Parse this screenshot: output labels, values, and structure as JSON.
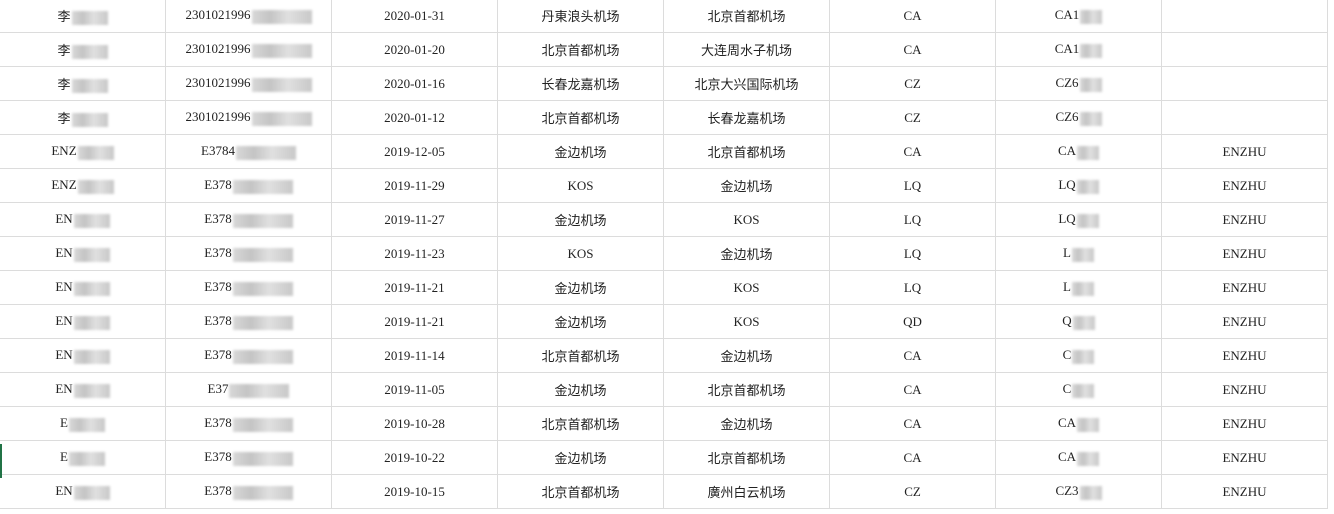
{
  "rows": [
    {
      "name": "李",
      "id": "2301021996",
      "date": "2020-01-31",
      "from": "丹東浪头机场",
      "to": "北京首都机场",
      "airline": "CA",
      "flight": "CA1",
      "note": ""
    },
    {
      "name": "李",
      "id": "2301021996",
      "date": "2020-01-20",
      "from": "北京首都机场",
      "to": "大连周水子机场",
      "airline": "CA",
      "flight": "CA1",
      "note": ""
    },
    {
      "name": "李",
      "id": "2301021996",
      "date": "2020-01-16",
      "from": "长春龙嘉机场",
      "to": "北京大兴国际机场",
      "airline": "CZ",
      "flight": "CZ6",
      "note": ""
    },
    {
      "name": "李",
      "id": "2301021996",
      "date": "2020-01-12",
      "from": "北京首都机场",
      "to": "长春龙嘉机场",
      "airline": "CZ",
      "flight": "CZ6",
      "note": ""
    },
    {
      "name": "ENZ",
      "id": "E3784",
      "date": "2019-12-05",
      "from": "金边机场",
      "to": "北京首都机场",
      "airline": "CA",
      "flight": "CA",
      "note": "ENZHU"
    },
    {
      "name": "ENZ",
      "id": "E378",
      "date": "2019-11-29",
      "from": "KOS",
      "to": "金边机场",
      "airline": "LQ",
      "flight": "LQ",
      "note": "ENZHU"
    },
    {
      "name": "EN",
      "id": "E378",
      "date": "2019-11-27",
      "from": "金边机场",
      "to": "KOS",
      "airline": "LQ",
      "flight": "LQ",
      "note": "ENZHU"
    },
    {
      "name": "EN",
      "id": "E378",
      "date": "2019-11-23",
      "from": "KOS",
      "to": "金边机场",
      "airline": "LQ",
      "flight": "L",
      "note": "ENZHU"
    },
    {
      "name": "EN",
      "id": "E378",
      "date": "2019-11-21",
      "from": "金边机场",
      "to": "KOS",
      "airline": "LQ",
      "flight": "L",
      "note": "ENZHU"
    },
    {
      "name": "EN",
      "id": "E378",
      "date": "2019-11-21",
      "from": "金边机场",
      "to": "KOS",
      "airline": "QD",
      "flight": "Q",
      "note": "ENZHU"
    },
    {
      "name": "EN",
      "id": "E378",
      "date": "2019-11-14",
      "from": "北京首都机场",
      "to": "金边机场",
      "airline": "CA",
      "flight": "C",
      "note": "ENZHU"
    },
    {
      "name": "EN",
      "id": "E37",
      "date": "2019-11-05",
      "from": "金边机场",
      "to": "北京首都机场",
      "airline": "CA",
      "flight": "C",
      "note": "ENZHU"
    },
    {
      "name": "E",
      "id": "E378",
      "date": "2019-10-28",
      "from": "北京首都机场",
      "to": "金边机场",
      "airline": "CA",
      "flight": "CA",
      "note": "ENZHU"
    },
    {
      "name": "E",
      "id": "E378",
      "date": "2019-10-22",
      "from": "金边机场",
      "to": "北京首都机场",
      "airline": "CA",
      "flight": "CA",
      "note": "ENZHU"
    },
    {
      "name": "EN",
      "id": "E378",
      "date": "2019-10-15",
      "from": "北京首都机场",
      "to": "廣州白云机场",
      "airline": "CZ",
      "flight": "CZ3",
      "note": "ENZHU"
    }
  ]
}
